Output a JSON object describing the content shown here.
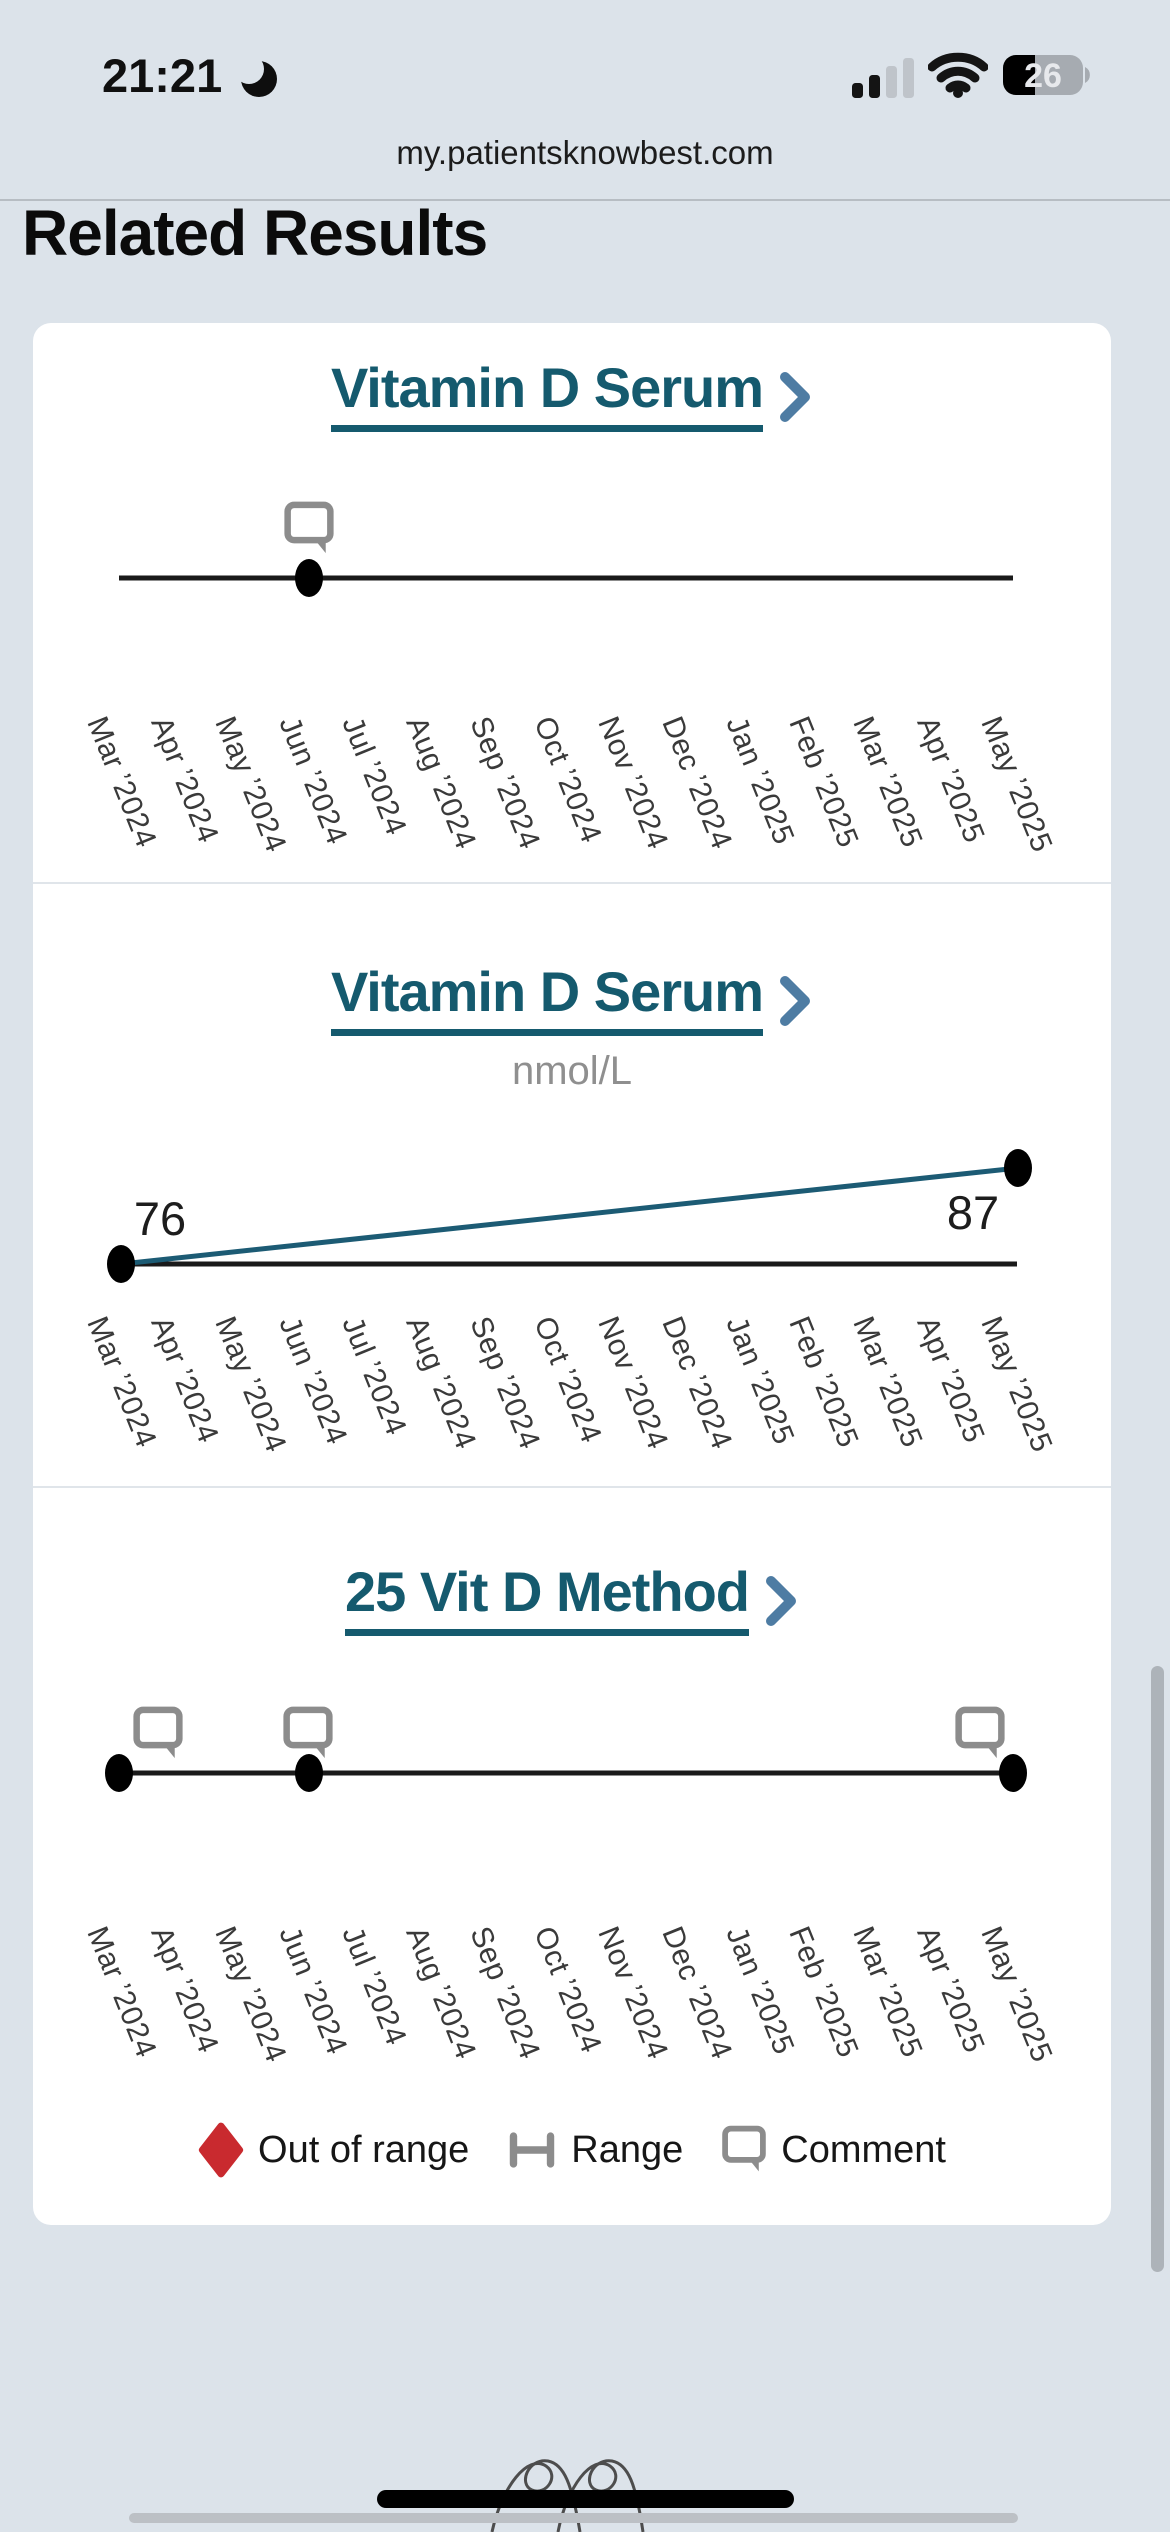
{
  "status_bar": {
    "time": "21:21",
    "battery_percent": "26"
  },
  "browser": {
    "url": "my.patientsknowbest.com"
  },
  "page": {
    "heading": "Related Results"
  },
  "colors": {
    "background": "#dce3ea",
    "accent_teal": "#155a6e",
    "chevron_blue": "#4e7ca3",
    "line_teal": "#1c5b74",
    "out_of_range_red": "#c92a2f",
    "icon_gray": "#8c8c8c"
  },
  "chart_data": [
    {
      "type": "line",
      "title": "Vitamin D Serum",
      "categories": [
        "Mar ’2024",
        "Apr ’2024",
        "May ’2024",
        "Jun ’2024",
        "Jul ’2024",
        "Aug ’2024",
        "Sep ’2024",
        "Oct ’2024",
        "Nov ’2024",
        "Dec ’2024",
        "Jan ’2025",
        "Feb ’2025",
        "Mar ’2025",
        "Apr ’2025",
        "May ’2025"
      ],
      "series": [
        {
          "name": "Vitamin D Serum",
          "points": [
            {
              "x": "Jun ’2024",
              "value": null,
              "comment": true
            }
          ]
        }
      ],
      "x_range": [
        "Mar ’2024",
        "May ’2025"
      ],
      "grid": false,
      "legend_position": "none"
    },
    {
      "type": "line",
      "title": "Vitamin D Serum",
      "unit": "nmol/L",
      "categories": [
        "Mar ’2024",
        "Apr ’2024",
        "May ’2024",
        "Jun ’2024",
        "Jul ’2024",
        "Aug ’2024",
        "Sep ’2024",
        "Oct ’2024",
        "Nov ’2024",
        "Dec ’2024",
        "Jan ’2025",
        "Feb ’2025",
        "Mar ’2025",
        "Apr ’2025",
        "May ’2025"
      ],
      "series": [
        {
          "name": "Vitamin D Serum",
          "points": [
            {
              "x": "Mar ’2024",
              "value": 76
            },
            {
              "x": "May ’2025",
              "value": 87
            }
          ]
        }
      ],
      "x_range": [
        "Mar ’2024",
        "May ’2025"
      ],
      "grid": false,
      "legend_position": "none"
    },
    {
      "type": "line",
      "title": "25 Vit D Method",
      "categories": [
        "Mar ’2024",
        "Apr ’2024",
        "May ’2024",
        "Jun ’2024",
        "Jul ’2024",
        "Aug ’2024",
        "Sep ’2024",
        "Oct ’2024",
        "Nov ’2024",
        "Dec ’2024",
        "Jan ’2025",
        "Feb ’2025",
        "Mar ’2025",
        "Apr ’2025",
        "May ’2025"
      ],
      "series": [
        {
          "name": "25 Vit D Method",
          "points": [
            {
              "x": "Mar ’2024",
              "value": null,
              "comment": true
            },
            {
              "x": "Jun ’2024",
              "value": null,
              "comment": true
            },
            {
              "x": "May ’2025",
              "value": null,
              "comment": true
            }
          ]
        }
      ],
      "x_range": [
        "Mar ’2024",
        "May ’2025"
      ],
      "grid": false,
      "legend_position": "none"
    }
  ],
  "legend": {
    "items": [
      {
        "icon": "out-of-range-diamond",
        "label": "Out of range",
        "color": "#c92a2f"
      },
      {
        "icon": "range-bracket",
        "label": "Range",
        "color": "#8c8c8c"
      },
      {
        "icon": "comment-bubble",
        "label": "Comment",
        "color": "#8c8c8c"
      }
    ]
  }
}
